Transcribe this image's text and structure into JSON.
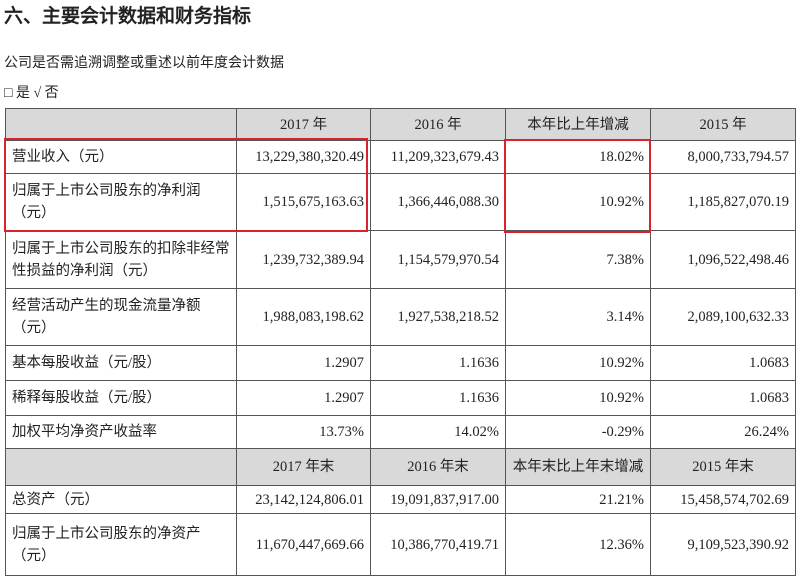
{
  "title": "六、主要会计数据和财务指标",
  "question": "公司是否需追溯调整或重述以前年度会计数据",
  "answer": "□ 是 √ 否",
  "table": {
    "header": [
      "2017 年",
      "2016 年",
      "本年比上年增减",
      "2015 年"
    ],
    "rows": [
      [
        "营业收入（元）",
        "13,229,380,320.49",
        "11,209,323,679.43",
        "18.02%",
        "8,000,733,794.57"
      ],
      [
        "归属于上市公司股东的净利润\n（元）",
        "1,515,675,163.63",
        "1,366,446,088.30",
        "10.92%",
        "1,185,827,070.19"
      ],
      [
        "归属于上市公司股东的扣除非经常\n性损益的净利润（元）",
        "1,239,732,389.94",
        "1,154,579,970.54",
        "7.38%",
        "1,096,522,498.46"
      ],
      [
        "经营活动产生的现金流量净额\n（元）",
        "1,988,083,198.62",
        "1,927,538,218.52",
        "3.14%",
        "2,089,100,632.33"
      ],
      [
        "基本每股收益（元/股）",
        "1.2907",
        "1.1636",
        "10.92%",
        "1.0683"
      ],
      [
        "稀释每股收益（元/股）",
        "1.2907",
        "1.1636",
        "10.92%",
        "1.0683"
      ],
      [
        "加权平均净资产收益率",
        "13.73%",
        "14.02%",
        "-0.29%",
        "26.24%"
      ]
    ],
    "header2": [
      "2017 年末",
      "2016 年末",
      "本年末比上年末增减",
      "2015 年末"
    ],
    "rows2": [
      [
        "总资产（元）",
        "23,142,124,806.01",
        "19,091,837,917.00",
        "21.21%",
        "15,458,574,702.69"
      ],
      [
        "归属于上市公司股东的净资产\n（元）",
        "11,670,447,669.66",
        "10,386,770,419.71",
        "12.36%",
        "9,109,523,390.92"
      ]
    ]
  }
}
